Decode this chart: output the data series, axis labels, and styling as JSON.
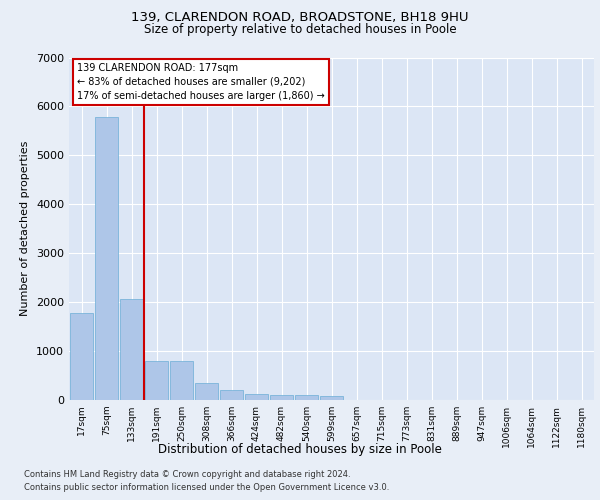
{
  "title1": "139, CLARENDON ROAD, BROADSTONE, BH18 9HU",
  "title2": "Size of property relative to detached houses in Poole",
  "xlabel": "Distribution of detached houses by size in Poole",
  "ylabel": "Number of detached properties",
  "bar_labels": [
    "17sqm",
    "75sqm",
    "133sqm",
    "191sqm",
    "250sqm",
    "308sqm",
    "366sqm",
    "424sqm",
    "482sqm",
    "540sqm",
    "599sqm",
    "657sqm",
    "715sqm",
    "773sqm",
    "831sqm",
    "889sqm",
    "947sqm",
    "1006sqm",
    "1064sqm",
    "1122sqm",
    "1180sqm"
  ],
  "bar_values": [
    1780,
    5780,
    2060,
    800,
    790,
    340,
    200,
    130,
    110,
    100,
    90,
    0,
    0,
    0,
    0,
    0,
    0,
    0,
    0,
    0,
    0
  ],
  "bar_color": "#aec6e8",
  "bar_edge_color": "#6baed6",
  "vline_x": 2.5,
  "annotation_title": "139 CLARENDON ROAD: 177sqm",
  "annotation_line1": "← 83% of detached houses are smaller (9,202)",
  "annotation_line2": "17% of semi-detached houses are larger (1,860) →",
  "vline_color": "#cc0000",
  "annotation_box_color": "#ffffff",
  "annotation_box_edge": "#cc0000",
  "ylim": [
    0,
    7000
  ],
  "yticks": [
    0,
    1000,
    2000,
    3000,
    4000,
    5000,
    6000,
    7000
  ],
  "footnote1": "Contains HM Land Registry data © Crown copyright and database right 2024.",
  "footnote2": "Contains public sector information licensed under the Open Government Licence v3.0.",
  "bg_color": "#e8eef7",
  "plot_bg_color": "#dce6f5"
}
